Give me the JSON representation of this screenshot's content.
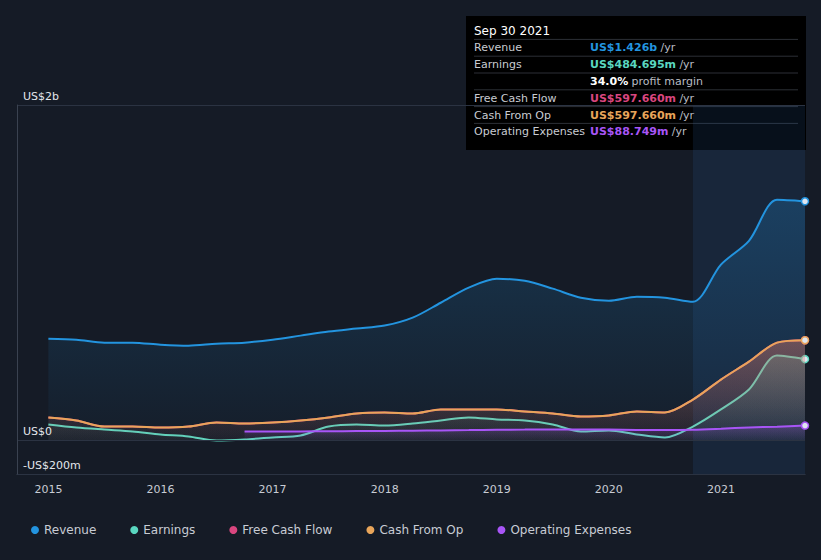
{
  "chart_data": {
    "type": "area",
    "x": [
      2015,
      2015.25,
      2015.5,
      2015.75,
      2016,
      2016.25,
      2016.5,
      2016.75,
      2017,
      2017.25,
      2017.5,
      2017.75,
      2018,
      2018.25,
      2018.5,
      2018.75,
      2019,
      2019.25,
      2019.5,
      2019.75,
      2020,
      2020.25,
      2020.5,
      2020.75,
      2021,
      2021.25,
      2021.5,
      2021.75
    ],
    "xlim": [
      2014.72,
      2021.75
    ],
    "xticks": [
      2015,
      2016,
      2017,
      2018,
      2019,
      2020,
      2021
    ],
    "ylim": [
      -200,
      2000
    ],
    "yticks": [
      {
        "value": -200,
        "label": "-US$200m"
      },
      {
        "value": 0,
        "label": "US$0"
      },
      {
        "value": 2000,
        "label": "US$2b"
      }
    ],
    "grid": true,
    "legend": "bottom left",
    "series": [
      {
        "name": "Revenue",
        "color": "#2394df",
        "values": [
          607,
          601,
          583,
          583,
          571,
          565,
          577,
          583,
          601,
          625,
          649,
          667,
          685,
          732,
          821,
          911,
          964,
          952,
          905,
          851,
          833,
          857,
          851,
          827,
          1048,
          1190,
          1435,
          1426
        ]
      },
      {
        "name": "Earnings",
        "color": "#5ad7c0",
        "values": [
          95,
          77,
          65,
          54,
          36,
          24,
          0,
          6,
          18,
          30,
          83,
          95,
          89,
          101,
          119,
          137,
          125,
          119,
          95,
          54,
          60,
          36,
          18,
          83,
          185,
          304,
          506,
          484.695
        ]
      },
      {
        "name": "Free Cash Flow",
        "color": "#d9467f",
        "values": [
          137,
          119,
          83,
          83,
          77,
          83,
          107,
          101,
          107,
          119,
          137,
          161,
          167,
          161,
          185,
          185,
          185,
          173,
          161,
          143,
          149,
          173,
          167,
          244,
          363,
          470,
          583,
          597.66
        ]
      },
      {
        "name": "Cash From Op",
        "color": "#e8a55a",
        "values": [
          137,
          119,
          83,
          83,
          77,
          83,
          107,
          101,
          107,
          119,
          137,
          161,
          167,
          161,
          185,
          185,
          185,
          173,
          161,
          143,
          149,
          173,
          167,
          244,
          363,
          470,
          583,
          597.66
        ]
      },
      {
        "name": "Operating Expenses",
        "color": "#a855f7",
        "values": [
          null,
          null,
          null,
          null,
          null,
          null,
          null,
          53,
          53,
          54,
          55,
          56,
          57,
          58,
          60,
          62,
          64,
          65,
          66,
          66,
          65,
          63,
          62,
          64,
          70,
          77,
          82,
          88.749
        ]
      }
    ],
    "annotation": {
      "title": "Sep 30 2021",
      "rows": [
        {
          "label": "Revenue",
          "value": "US$1.426b",
          "unit": "/yr",
          "color": "#2394df"
        },
        {
          "label": "Earnings",
          "value": "US$484.695m",
          "unit": "/yr",
          "color": "#5ad7c0"
        },
        {
          "value": "34.0%",
          "unit": "profit margin",
          "color": "#ffffff"
        },
        {
          "label": "Free Cash Flow",
          "value": "US$597.660m",
          "unit": "/yr",
          "color": "#d9467f"
        },
        {
          "label": "Cash From Op",
          "value": "US$597.660m",
          "unit": "/yr",
          "color": "#e8a55a"
        },
        {
          "label": "Operating Expenses",
          "value": "US$88.749m",
          "unit": "/yr",
          "color": "#a855f7"
        }
      ]
    }
  }
}
